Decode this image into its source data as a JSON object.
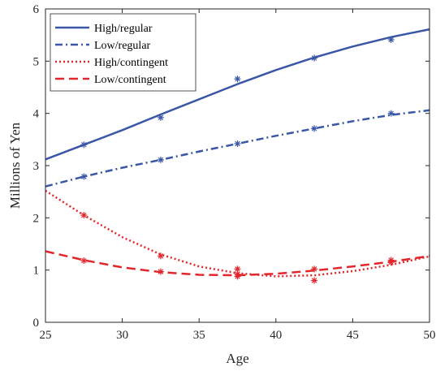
{
  "chart_data": {
    "type": "line",
    "xlabel": "Age",
    "ylabel": "Millions of Yen",
    "xlim": [
      25,
      50
    ],
    "ylim": [
      0,
      6
    ],
    "xticks": [
      25,
      30,
      35,
      40,
      45,
      50
    ],
    "yticks": [
      0,
      1,
      2,
      3,
      4,
      5,
      6
    ],
    "grid": false,
    "legend_position": "top-left",
    "series": [
      {
        "name": "High/regular",
        "color": "#3a57a7",
        "line_style": "solid",
        "fitted": [
          [
            25,
            3.12
          ],
          [
            27.5,
            3.4
          ],
          [
            30,
            3.68
          ],
          [
            32.5,
            3.98
          ],
          [
            35,
            4.27
          ],
          [
            37.5,
            4.56
          ],
          [
            40,
            4.83
          ],
          [
            42.5,
            5.07
          ],
          [
            45,
            5.28
          ],
          [
            47.5,
            5.46
          ],
          [
            50,
            5.61
          ]
        ],
        "markers": [
          [
            27.5,
            3.4
          ],
          [
            32.5,
            3.92
          ],
          [
            37.5,
            4.66
          ],
          [
            42.5,
            5.06
          ],
          [
            47.5,
            5.41
          ]
        ]
      },
      {
        "name": "Low/regular",
        "color": "#3a57a7",
        "line_style": "dashdot",
        "fitted": [
          [
            25,
            2.6
          ],
          [
            27.5,
            2.79
          ],
          [
            30,
            2.96
          ],
          [
            32.5,
            3.11
          ],
          [
            35,
            3.27
          ],
          [
            37.5,
            3.42
          ],
          [
            40,
            3.57
          ],
          [
            42.5,
            3.71
          ],
          [
            45,
            3.85
          ],
          [
            47.5,
            3.97
          ],
          [
            50,
            4.06
          ]
        ],
        "markers": [
          [
            27.5,
            2.79
          ],
          [
            32.5,
            3.11
          ],
          [
            37.5,
            3.42
          ],
          [
            42.5,
            3.71
          ],
          [
            47.5,
            4.0
          ]
        ]
      },
      {
        "name": "High/contingent",
        "color": "#e3262b",
        "line_style": "dotted",
        "fitted": [
          [
            25,
            2.52
          ],
          [
            27.5,
            2.05
          ],
          [
            30,
            1.63
          ],
          [
            32.5,
            1.3
          ],
          [
            35,
            1.07
          ],
          [
            37.5,
            0.94
          ],
          [
            40,
            0.88
          ],
          [
            42.5,
            0.9
          ],
          [
            45,
            0.98
          ],
          [
            47.5,
            1.1
          ],
          [
            50,
            1.26
          ]
        ],
        "markers": [
          [
            27.5,
            2.05
          ],
          [
            32.5,
            1.27
          ],
          [
            37.5,
            0.88
          ],
          [
            37.5,
            1.02
          ],
          [
            42.5,
            0.8
          ],
          [
            47.5,
            1.15
          ]
        ]
      },
      {
        "name": "Low/contingent",
        "color": "#e3262b",
        "line_style": "dashed",
        "fitted": [
          [
            25,
            1.36
          ],
          [
            27.5,
            1.19
          ],
          [
            30,
            1.05
          ],
          [
            32.5,
            0.96
          ],
          [
            35,
            0.91
          ],
          [
            37.5,
            0.9
          ],
          [
            40,
            0.93
          ],
          [
            42.5,
            0.99
          ],
          [
            45,
            1.07
          ],
          [
            47.5,
            1.16
          ],
          [
            50,
            1.27
          ]
        ],
        "markers": [
          [
            27.5,
            1.18
          ],
          [
            32.5,
            0.97
          ],
          [
            37.5,
            0.92
          ],
          [
            42.5,
            1.02
          ],
          [
            47.5,
            1.19
          ]
        ]
      }
    ]
  }
}
